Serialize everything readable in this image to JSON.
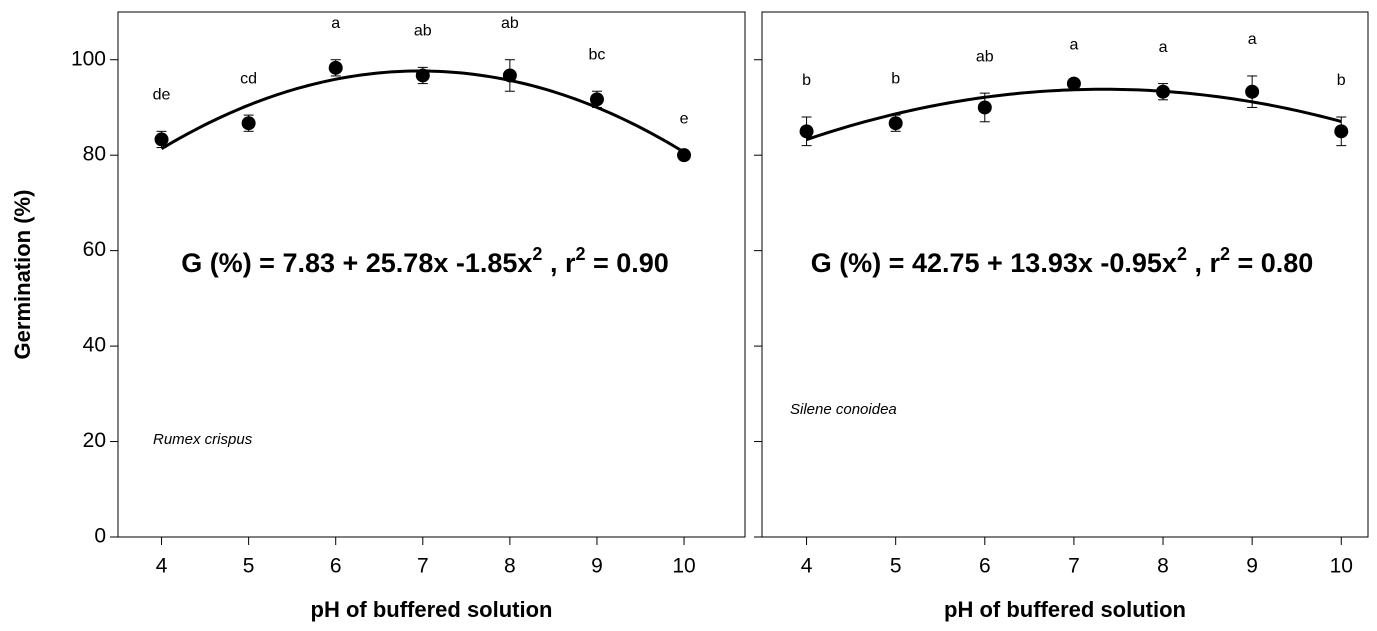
{
  "chart_data": [
    {
      "type": "scatter",
      "color": "#000000",
      "x": [
        4,
        5,
        6,
        7,
        8,
        9,
        10
      ],
      "values": [
        83.3,
        86.7,
        98.3,
        96.7,
        96.7,
        91.7,
        80
      ],
      "errors": [
        1.7,
        1.7,
        1.7,
        1.7,
        3.3,
        1.7,
        0
      ],
      "letters": [
        "de",
        "cd",
        "a",
        "ab",
        "ab",
        "bc",
        "e"
      ],
      "fit": [
        7.83,
        25.78,
        -1.85
      ],
      "equation": [
        "G (%) = 7.83 + 25.78x -1.85x",
        "2",
        " , r",
        "2",
        " = 0.90"
      ],
      "species": "Rumex crispus",
      "xlabel": "pH of buffered solution",
      "ylabel": "Germination (%)",
      "xlim": [
        3.5,
        10.7
      ],
      "ylim": [
        0,
        110
      ],
      "xticks": [
        4,
        5,
        6,
        7,
        8,
        9,
        10
      ],
      "yticks": [
        0,
        20,
        40,
        60,
        80,
        100
      ]
    },
    {
      "type": "scatter",
      "color": "#000000",
      "x": [
        4,
        5,
        6,
        7,
        8,
        9,
        10
      ],
      "values": [
        85,
        86.7,
        90,
        95,
        93.3,
        93.3,
        85
      ],
      "errors": [
        3,
        1.7,
        3,
        0.5,
        1.7,
        3.3,
        3
      ],
      "letters": [
        "b",
        "b",
        "ab",
        "a",
        "a",
        "a",
        "b"
      ],
      "fit": [
        42.75,
        13.93,
        -0.95
      ],
      "equation": [
        "G (%) = 42.75 + 13.93x -0.95x",
        "2",
        " , r",
        "2",
        " = 0.80"
      ],
      "species": "Silene conoidea",
      "xlabel": "pH of buffered solution",
      "xlim": [
        3.5,
        10.3
      ],
      "ylim": [
        0,
        110
      ],
      "xticks": [
        4,
        5,
        6,
        7,
        8,
        9,
        10
      ],
      "yticks": [
        0,
        20,
        40,
        60,
        80,
        100
      ],
      "ytick_labels": false
    }
  ]
}
